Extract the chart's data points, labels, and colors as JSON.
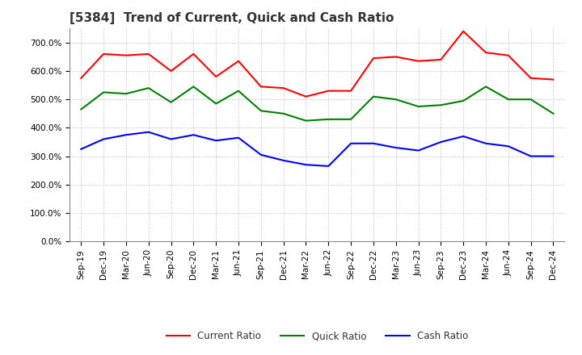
{
  "title": "[5384]  Trend of Current, Quick and Cash Ratio",
  "labels": [
    "Sep-19",
    "Dec-19",
    "Mar-20",
    "Jun-20",
    "Sep-20",
    "Dec-20",
    "Mar-21",
    "Jun-21",
    "Sep-21",
    "Dec-21",
    "Mar-22",
    "Jun-22",
    "Sep-22",
    "Dec-22",
    "Mar-23",
    "Jun-23",
    "Sep-23",
    "Dec-23",
    "Mar-24",
    "Jun-24",
    "Sep-24",
    "Dec-24"
  ],
  "current_ratio": [
    575,
    660,
    655,
    660,
    600,
    660,
    580,
    635,
    545,
    540,
    510,
    530,
    530,
    645,
    650,
    635,
    640,
    740,
    665,
    655,
    575,
    570
  ],
  "quick_ratio": [
    465,
    525,
    520,
    540,
    490,
    545,
    485,
    530,
    460,
    450,
    425,
    430,
    430,
    510,
    500,
    475,
    480,
    495,
    545,
    500,
    500,
    450
  ],
  "cash_ratio": [
    325,
    360,
    375,
    385,
    360,
    375,
    355,
    365,
    305,
    285,
    270,
    265,
    345,
    345,
    330,
    320,
    350,
    370,
    345,
    335,
    300,
    300
  ],
  "current_color": "#FF0000",
  "quick_color": "#008000",
  "cash_color": "#0000FF",
  "ylim": [
    0,
    750
  ],
  "yticks": [
    0,
    100,
    200,
    300,
    400,
    500,
    600,
    700
  ],
  "background_color": "#FFFFFF",
  "grid_color": "#BBBBBB",
  "title_fontsize": 11,
  "tick_fontsize": 7.5,
  "legend_fontsize": 8.5
}
